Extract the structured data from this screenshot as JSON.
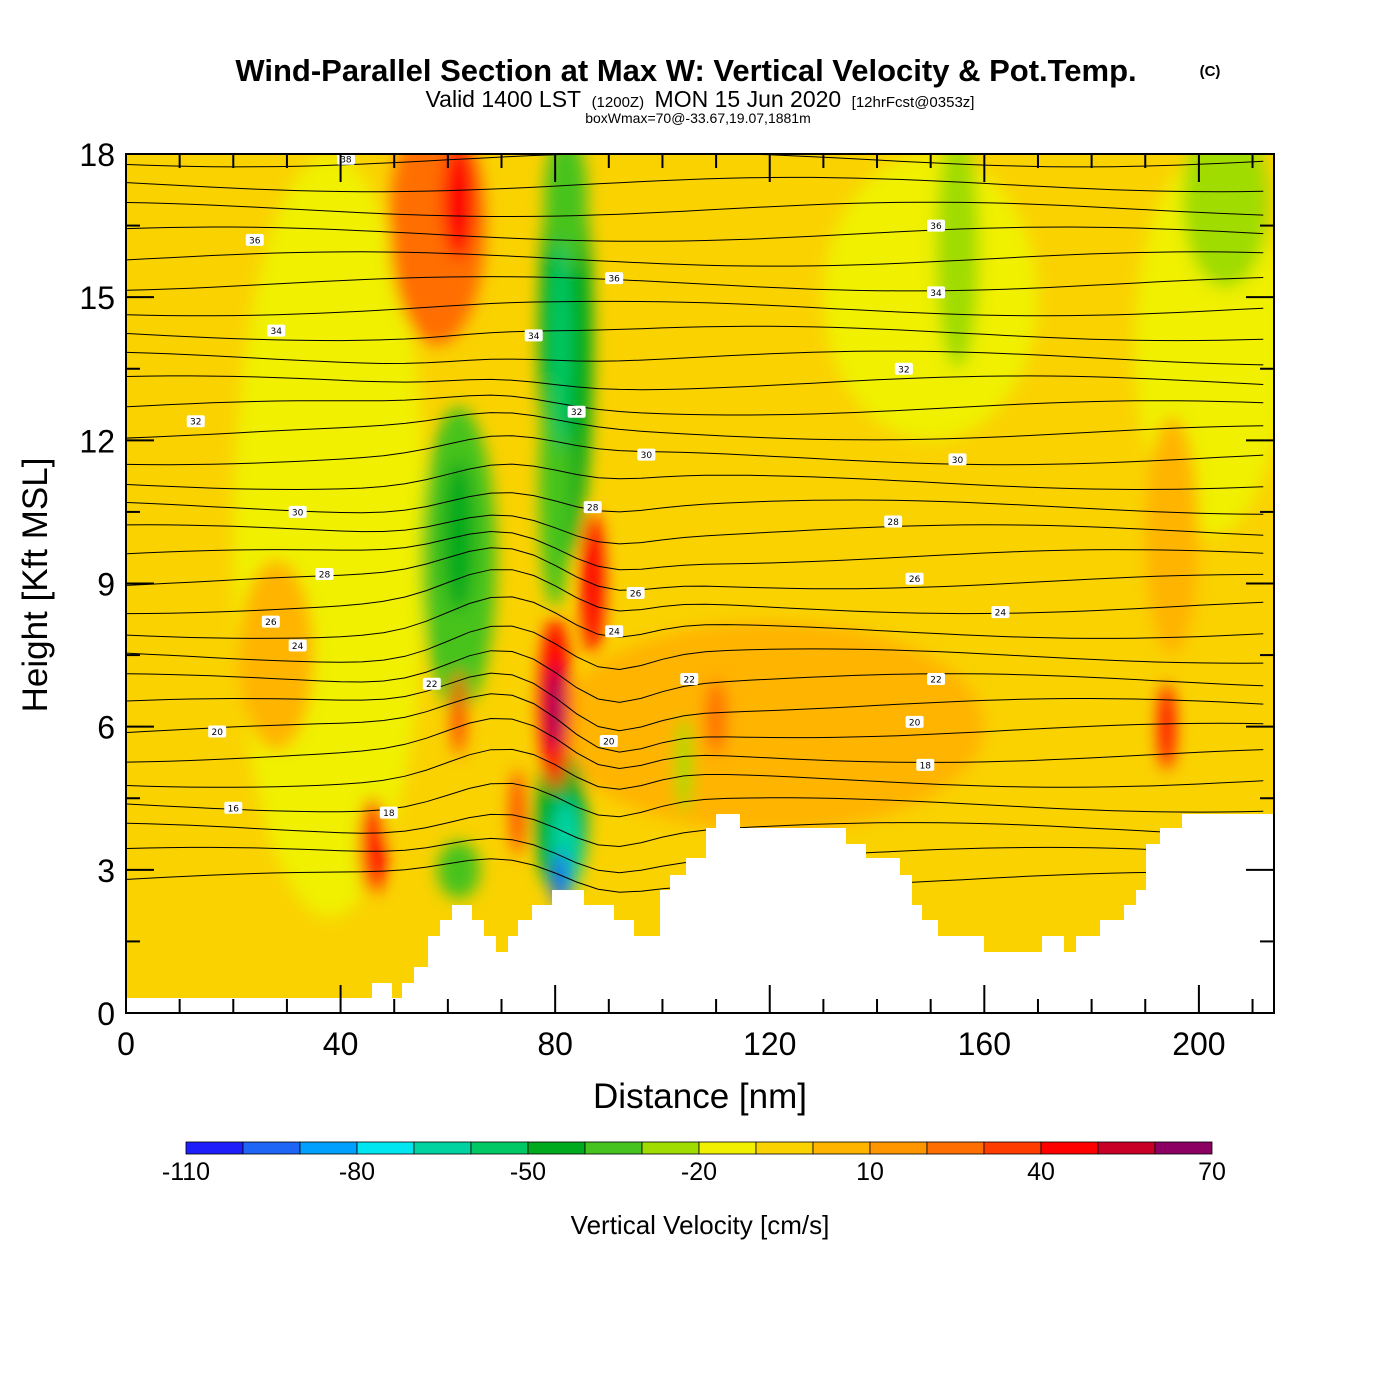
{
  "chart_data": {
    "type": "heatmap",
    "title": "Wind-Parallel Section at Max W: Vertical Velocity & Pot.Temp.",
    "copyright": "(C)",
    "subtitle": {
      "valid": "Valid 1400 LST",
      "utc": "(1200Z)",
      "date": "MON 15 Jun 2020",
      "forecast": "[12hrFcst@0353z]"
    },
    "box_info": "boxWmax=70@-33.67,19.07,1881m",
    "xlabel": "Distance [nm]",
    "ylabel": "Height [Kft MSL]",
    "xlim": [
      0,
      214
    ],
    "ylim": [
      0,
      18
    ],
    "x_ticks": [
      "0",
      "40",
      "80",
      "120",
      "160",
      "200"
    ],
    "y_ticks": [
      "0",
      "3",
      "6",
      "9",
      "12",
      "15",
      "18"
    ],
    "colorbar": {
      "title": "Vertical Velocity [cm/s]",
      "labels": [
        "-110",
        "-80",
        "-50",
        "-20",
        "10",
        "40",
        "70"
      ],
      "levels": [
        -110,
        -100,
        -90,
        -80,
        -70,
        -60,
        -50,
        -40,
        -30,
        -20,
        -10,
        0,
        10,
        20,
        30,
        40,
        50,
        60,
        70
      ],
      "colors": [
        "#1e1efa",
        "#1e64f5",
        "#00a0ff",
        "#00e6f0",
        "#00d2a0",
        "#00c864",
        "#00aa1e",
        "#46c31e",
        "#a0dc00",
        "#f0f000",
        "#fad200",
        "#ffb400",
        "#ff9600",
        "#ff6e00",
        "#ff3c00",
        "#ff0000",
        "#c80028",
        "#8c0064"
      ]
    },
    "theta_labels": [
      "16",
      "18",
      "20",
      "22",
      "24",
      "26",
      "28",
      "30",
      "32",
      "34",
      "36",
      "38"
    ],
    "features": [
      {
        "name": "downdraft",
        "x": 81,
        "z": 3.0,
        "w": -100
      },
      {
        "name": "downdraft-aloft",
        "x": 81,
        "z": 14.0,
        "w": -60
      },
      {
        "name": "updraft-core",
        "x": 80,
        "z": 6.5,
        "w": 70
      },
      {
        "name": "updraft",
        "x": 87,
        "z": 9.0,
        "w": 45
      },
      {
        "name": "updraft-low",
        "x": 46,
        "z": 3.5,
        "w": 40
      },
      {
        "name": "updraft-aloft",
        "x": 62,
        "z": 17.0,
        "w": 45
      },
      {
        "name": "updraft-east",
        "x": 194,
        "z": 6.0,
        "w": 45
      },
      {
        "name": "sinking-mid",
        "x": 62,
        "z": 10.0,
        "w": -45
      }
    ]
  }
}
